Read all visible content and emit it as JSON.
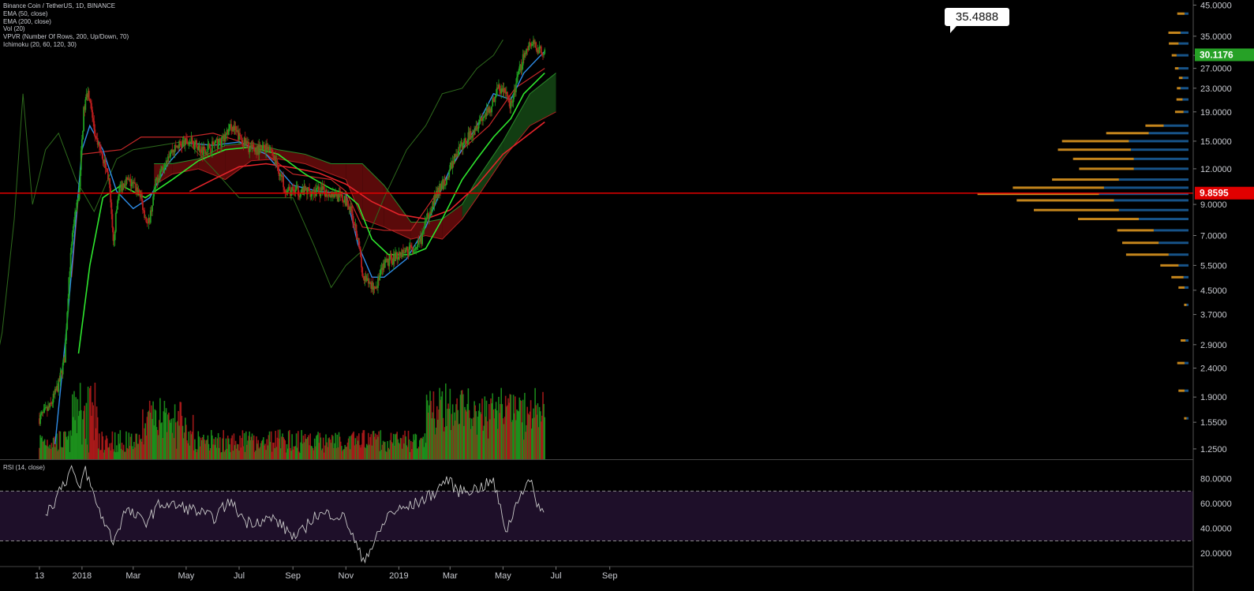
{
  "legend": {
    "symbol": "Binance Coin / TetherUS, 1D, BINANCE",
    "ema50": "EMA (50, close)",
    "ema200": "EMA (200, close)",
    "vol": "Vol (20)",
    "vpvr": "VPVR (Number Of Rows, 200, Up/Down, 70)",
    "ichimoku": "Ichimoku (20, 60, 120, 30)"
  },
  "rsi_label": "RSI (14, close)",
  "colors": {
    "up": "#1f9c1f",
    "down": "#b71c1c",
    "ema50": "#2ee62e",
    "ema200": "#e5242a",
    "conversion": "#2f8de8",
    "base": "#c62828",
    "lagging": "#2e6b1c",
    "cloud_bull": "#123d12",
    "cloud_bear": "#5a0a0a",
    "vpvr_up": "#f5a623",
    "vpvr_down": "#1f6fb5",
    "rsi_line": "#c8c8c8",
    "rsi_band": "#1e0f29"
  },
  "chart_data": {
    "type": "candlestick",
    "scale": "log",
    "price_axis": [
      "45.0000",
      "35.0000",
      "30.0000",
      "27.0000",
      "23.0000",
      "19.0000",
      "15.0000",
      "12.0000",
      "9.0000",
      "7.0000",
      "5.5000",
      "4.5000",
      "3.7000",
      "2.9000",
      "2.4000",
      "1.9000",
      "1.5500",
      "1.2500"
    ],
    "time_axis": [
      "13",
      "2018",
      "Mar",
      "May",
      "Jul",
      "Sep",
      "Nov",
      "2019",
      "Mar",
      "May",
      "Jul",
      "Sep"
    ],
    "price_range": [
      1.15,
      46
    ],
    "current_price": "30.1176",
    "horizontal_level": "9.8595",
    "callout": "35.4888",
    "price_path": [
      [
        "2017-11-13",
        1.6
      ],
      [
        "2017-11-25",
        1.75
      ],
      [
        "2017-12-05",
        2.1
      ],
      [
        "2017-12-12",
        2.6
      ],
      [
        "2017-12-17",
        5.0
      ],
      [
        "2017-12-22",
        7.5
      ],
      [
        "2017-12-28",
        9.5
      ],
      [
        "2018-01-03",
        19
      ],
      [
        "2018-01-08",
        23
      ],
      [
        "2018-01-12",
        19
      ],
      [
        "2018-01-17",
        15
      ],
      [
        "2018-01-23",
        14
      ],
      [
        "2018-02-01",
        11
      ],
      [
        "2018-02-06",
        6.5
      ],
      [
        "2018-02-12",
        10
      ],
      [
        "2018-02-20",
        11
      ],
      [
        "2018-03-01",
        10.5
      ],
      [
        "2018-03-08",
        10
      ],
      [
        "2018-03-18",
        7.5
      ],
      [
        "2018-03-28",
        11
      ],
      [
        "2018-04-10",
        13.5
      ],
      [
        "2018-04-22",
        14.5
      ],
      [
        "2018-05-05",
        15
      ],
      [
        "2018-05-20",
        14
      ],
      [
        "2018-06-01",
        14.5
      ],
      [
        "2018-06-12",
        15
      ],
      [
        "2018-06-22",
        17
      ],
      [
        "2018-07-01",
        15.5
      ],
      [
        "2018-07-15",
        14
      ],
      [
        "2018-07-25",
        14
      ],
      [
        "2018-08-05",
        14.5
      ],
      [
        "2018-08-15",
        12
      ],
      [
        "2018-08-25",
        10
      ],
      [
        "2018-09-05",
        10
      ],
      [
        "2018-09-20",
        10
      ],
      [
        "2018-10-05",
        10
      ],
      [
        "2018-10-20",
        9.8
      ],
      [
        "2018-11-05",
        9
      ],
      [
        "2018-11-15",
        7
      ],
      [
        "2018-11-20",
        5
      ],
      [
        "2018-11-25",
        4.8
      ],
      [
        "2018-12-05",
        4.6
      ],
      [
        "2018-12-15",
        5.5
      ],
      [
        "2018-12-30",
        6
      ],
      [
        "2019-01-10",
        6.2
      ],
      [
        "2019-01-25",
        6.5
      ],
      [
        "2019-02-05",
        8.5
      ],
      [
        "2019-02-15",
        10
      ],
      [
        "2019-02-25",
        11
      ],
      [
        "2019-03-05",
        13
      ],
      [
        "2019-03-15",
        14.5
      ],
      [
        "2019-03-25",
        16
      ],
      [
        "2019-04-05",
        18
      ],
      [
        "2019-04-15",
        19
      ],
      [
        "2019-04-25",
        23
      ],
      [
        "2019-05-05",
        22
      ],
      [
        "2019-05-10",
        20
      ],
      [
        "2019-05-18",
        25
      ],
      [
        "2019-05-25",
        30
      ],
      [
        "2019-06-01",
        33
      ],
      [
        "2019-06-10",
        32
      ],
      [
        "2019-06-18",
        30.1
      ]
    ],
    "ema50_path": [
      [
        "2017-12-28",
        2.7
      ],
      [
        "2018-01-10",
        5.5
      ],
      [
        "2018-01-25",
        9.5
      ],
      [
        "2018-02-15",
        10.5
      ],
      [
        "2018-03-15",
        9.5
      ],
      [
        "2018-04-15",
        11
      ],
      [
        "2018-05-15",
        12.8
      ],
      [
        "2018-06-15",
        14
      ],
      [
        "2018-07-15",
        14.3
      ],
      [
        "2018-08-15",
        13.5
      ],
      [
        "2018-09-15",
        11.5
      ],
      [
        "2018-10-15",
        10.2
      ],
      [
        "2018-11-01",
        9.8
      ],
      [
        "2018-11-15",
        9.0
      ],
      [
        "2018-12-01",
        6.8
      ],
      [
        "2018-12-20",
        6.0
      ],
      [
        "2019-01-15",
        6.0
      ],
      [
        "2019-02-01",
        6.3
      ],
      [
        "2019-02-20",
        8.0
      ],
      [
        "2019-03-15",
        11
      ],
      [
        "2019-04-01",
        13
      ],
      [
        "2019-04-20",
        15.5
      ],
      [
        "2019-05-10",
        18
      ],
      [
        "2019-05-25",
        22
      ],
      [
        "2019-06-18",
        26
      ]
    ],
    "ema200_path": [
      [
        "2018-05-05",
        10.0
      ],
      [
        "2018-06-01",
        11.0
      ],
      [
        "2018-07-01",
        12.2
      ],
      [
        "2018-08-01",
        12.5
      ],
      [
        "2018-09-01",
        12.1
      ],
      [
        "2018-10-01",
        11.6
      ],
      [
        "2018-11-01",
        10.6
      ],
      [
        "2018-12-01",
        9.2
      ],
      [
        "2019-01-01",
        8.3
      ],
      [
        "2019-02-01",
        8.0
      ],
      [
        "2019-03-01",
        8.6
      ],
      [
        "2019-04-01",
        10.5
      ],
      [
        "2019-05-01",
        13.5
      ],
      [
        "2019-06-18",
        17.5
      ]
    ],
    "conversion_path": [
      [
        "2017-12-01",
        1.3
      ],
      [
        "2017-12-15",
        3.5
      ],
      [
        "2018-01-01",
        14
      ],
      [
        "2018-01-10",
        17
      ],
      [
        "2018-01-25",
        14
      ],
      [
        "2018-02-10",
        10
      ],
      [
        "2018-03-01",
        8.7
      ],
      [
        "2018-03-20",
        9.5
      ],
      [
        "2018-04-10",
        12.5
      ],
      [
        "2018-05-01",
        14.8
      ],
      [
        "2018-06-01",
        14.5
      ],
      [
        "2018-07-01",
        14.9
      ],
      [
        "2018-08-01",
        13.5
      ],
      [
        "2018-09-01",
        10.5
      ],
      [
        "2018-10-01",
        10.0
      ],
      [
        "2018-11-01",
        9.8
      ],
      [
        "2018-11-15",
        6.5
      ],
      [
        "2018-12-01",
        5.0
      ],
      [
        "2018-12-15",
        5.0
      ],
      [
        "2019-01-10",
        5.8
      ],
      [
        "2019-02-01",
        7.5
      ],
      [
        "2019-03-01",
        12
      ],
      [
        "2019-04-01",
        17
      ],
      [
        "2019-04-20",
        22
      ],
      [
        "2019-05-10",
        21
      ],
      [
        "2019-05-25",
        26
      ],
      [
        "2019-06-18",
        31
      ]
    ],
    "base_path": [
      [
        "2017-12-20",
        5
      ],
      [
        "2018-01-01",
        13.5
      ],
      [
        "2018-02-15",
        14
      ],
      [
        "2018-03-10",
        15.5
      ],
      [
        "2018-04-01",
        15.5
      ],
      [
        "2018-05-01",
        15.5
      ],
      [
        "2018-06-01",
        16
      ],
      [
        "2018-07-01",
        15
      ],
      [
        "2018-08-01",
        13.5
      ],
      [
        "2018-09-01",
        11.5
      ],
      [
        "2018-10-15",
        11
      ],
      [
        "2018-11-01",
        10
      ],
      [
        "2018-11-20",
        7.5
      ],
      [
        "2018-12-15",
        7.3
      ],
      [
        "2019-01-15",
        7.3
      ],
      [
        "2019-02-15",
        10
      ],
      [
        "2019-03-15",
        14
      ],
      [
        "2019-04-15",
        17
      ],
      [
        "2019-05-15",
        23
      ],
      [
        "2019-06-18",
        27
      ]
    ],
    "lagging_path": [
      [
        "2017-09-15",
        1.8
      ],
      [
        "2017-10-01",
        3.2
      ],
      [
        "2017-10-15",
        8
      ],
      [
        "2017-10-25",
        22
      ],
      [
        "2017-11-05",
        9
      ],
      [
        "2017-11-20",
        14
      ],
      [
        "2017-12-05",
        16
      ],
      [
        "2017-12-25",
        11
      ],
      [
        "2018-01-15",
        8.5
      ],
      [
        "2018-02-10",
        13
      ],
      [
        "2018-03-01",
        14
      ],
      [
        "2018-04-01",
        14.5
      ],
      [
        "2018-05-01",
        15
      ],
      [
        "2018-06-01",
        12
      ],
      [
        "2018-07-01",
        9.5
      ],
      [
        "2018-08-01",
        9.5
      ],
      [
        "2018-09-01",
        9.5
      ],
      [
        "2018-09-25",
        6.5
      ],
      [
        "2018-10-15",
        4.6
      ],
      [
        "2018-11-01",
        5.5
      ],
      [
        "2018-11-20",
        6.2
      ],
      [
        "2018-12-15",
        9.5
      ],
      [
        "2019-01-10",
        14
      ],
      [
        "2019-02-01",
        17
      ],
      [
        "2019-02-20",
        22
      ],
      [
        "2019-03-15",
        23
      ],
      [
        "2019-04-01",
        27
      ],
      [
        "2019-04-20",
        30
      ],
      [
        "2019-05-01",
        34
      ]
    ],
    "cloud_path": [
      [
        "2018-03-25",
        12.5,
        10.5
      ],
      [
        "2018-04-15",
        12.5,
        11.5
      ],
      [
        "2018-05-15",
        13.0,
        12.0
      ],
      [
        "2018-06-15",
        14.5,
        11.0
      ],
      [
        "2018-07-15",
        14.8,
        12.8
      ],
      [
        "2018-08-15",
        14.0,
        13.0
      ],
      [
        "2018-09-15",
        13.5,
        12.5
      ],
      [
        "2018-10-15",
        12.5,
        11.5
      ],
      [
        "2018-11-01",
        12.5,
        11.0
      ],
      [
        "2018-11-20",
        12.5,
        8.0
      ],
      [
        "2018-12-15",
        10.5,
        7.5
      ],
      [
        "2019-01-15",
        7.8,
        6.8
      ],
      [
        "2019-02-01",
        7.8,
        7.0
      ],
      [
        "2019-02-20",
        8.0,
        6.8
      ],
      [
        "2019-03-15",
        9.0,
        8.0
      ],
      [
        "2019-04-01",
        11.0,
        9.5
      ],
      [
        "2019-05-01",
        15.0,
        13.0
      ],
      [
        "2019-06-01",
        22.0,
        17.0
      ],
      [
        "2019-07-01",
        26.0,
        19.0
      ]
    ],
    "vpvr": [
      [
        42,
        0.06,
        0.04
      ],
      [
        36,
        0.1,
        0.08
      ],
      [
        33,
        0.08,
        0.1
      ],
      [
        30,
        0.04,
        0.12
      ],
      [
        27,
        0.03,
        0.1
      ],
      [
        25,
        0.03,
        0.06
      ],
      [
        23,
        0.03,
        0.08
      ],
      [
        21,
        0.05,
        0.06
      ],
      [
        19,
        0.07,
        0.05
      ],
      [
        17,
        0.15,
        0.25
      ],
      [
        16,
        0.35,
        0.4
      ],
      [
        15,
        0.55,
        0.6
      ],
      [
        14,
        0.6,
        0.58
      ],
      [
        13,
        0.5,
        0.55
      ],
      [
        12,
        0.45,
        0.55
      ],
      [
        11,
        0.55,
        0.7
      ],
      [
        10.3,
        0.75,
        0.85
      ],
      [
        9.8,
        1.0,
        0.9
      ],
      [
        9.3,
        0.8,
        0.75
      ],
      [
        8.6,
        0.7,
        0.7
      ],
      [
        8.0,
        0.5,
        0.5
      ],
      [
        7.3,
        0.3,
        0.35
      ],
      [
        6.6,
        0.3,
        0.3
      ],
      [
        6.0,
        0.35,
        0.2
      ],
      [
        5.5,
        0.15,
        0.1
      ],
      [
        5.0,
        0.1,
        0.05
      ],
      [
        4.6,
        0.05,
        0.04
      ],
      [
        4.0,
        0.02,
        0.02
      ],
      [
        3.0,
        0.04,
        0.03
      ],
      [
        2.5,
        0.06,
        0.04
      ],
      [
        2.0,
        0.05,
        0.04
      ],
      [
        1.6,
        0.02,
        0.02
      ]
    ],
    "volume_seed": 7,
    "rsi": {
      "levels": [
        "80.0000",
        "60.0000",
        "40.0000",
        "20.0000"
      ],
      "band": [
        30,
        70
      ],
      "path": [
        [
          "2017-11-20",
          53
        ],
        [
          "2017-12-01",
          62
        ],
        [
          "2017-12-08",
          75
        ],
        [
          "2017-12-15",
          80
        ],
        [
          "2017-12-20",
          90
        ],
        [
          "2017-12-28",
          70
        ],
        [
          "2018-01-05",
          88
        ],
        [
          "2018-01-15",
          65
        ],
        [
          "2018-02-06",
          30
        ],
        [
          "2018-02-20",
          55
        ],
        [
          "2018-03-15",
          45
        ],
        [
          "2018-04-01",
          60
        ],
        [
          "2018-04-20",
          58
        ],
        [
          "2018-05-10",
          55
        ],
        [
          "2018-06-01",
          48
        ],
        [
          "2018-06-20",
          62
        ],
        [
          "2018-07-10",
          45
        ],
        [
          "2018-08-10",
          48
        ],
        [
          "2018-09-05",
          32
        ],
        [
          "2018-09-25",
          50
        ],
        [
          "2018-10-15",
          52
        ],
        [
          "2018-11-01",
          48
        ],
        [
          "2018-11-20",
          15
        ],
        [
          "2018-12-01",
          25
        ],
        [
          "2018-12-20",
          52
        ],
        [
          "2019-01-15",
          58
        ],
        [
          "2019-02-10",
          68
        ],
        [
          "2019-02-25",
          80
        ],
        [
          "2019-03-10",
          70
        ],
        [
          "2019-04-01",
          72
        ],
        [
          "2019-04-20",
          78
        ],
        [
          "2019-05-05",
          38
        ],
        [
          "2019-05-20",
          68
        ],
        [
          "2019-06-01",
          78
        ],
        [
          "2019-06-10",
          60
        ],
        [
          "2019-06-18",
          50
        ]
      ]
    }
  }
}
